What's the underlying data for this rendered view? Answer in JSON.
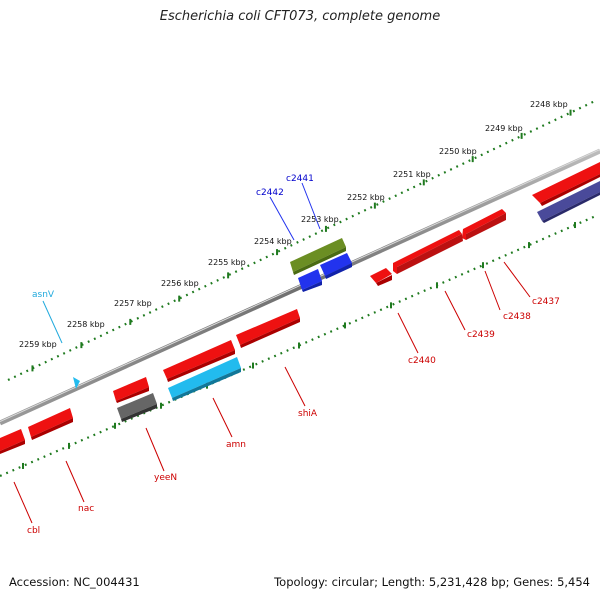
{
  "title": "Escherichia coli CFT073, complete genome",
  "footer": {
    "accession": "Accession: NC_004431",
    "summary": "Topology: circular; Length: 5,231,428 bp; Genes: 5,454"
  },
  "colors": {
    "backbone": "#7a7a7a",
    "tick": "#1f7a1f",
    "red_gene": "#ee1111",
    "red_label": "#cc0000",
    "blue_label": "#0000cc",
    "cyan_label": "#22aadd"
  },
  "ruler_outer": [
    {
      "label": "2248 kbp"
    },
    {
      "label": "2249 kbp"
    },
    {
      "label": "2250 kbp"
    },
    {
      "label": "2251 kbp"
    },
    {
      "label": "2252 kbp"
    },
    {
      "label": "2253 kbp"
    },
    {
      "label": "2254 kbp"
    },
    {
      "label": "2255 kbp"
    },
    {
      "label": "2256 kbp"
    },
    {
      "label": "2257 kbp"
    },
    {
      "label": "2258 kbp"
    },
    {
      "label": "2259 kbp"
    }
  ],
  "genes_forward": [
    {
      "name": "c2441",
      "color": "#2233ee",
      "label_color": "#0000cc"
    },
    {
      "name": "c2442",
      "color": "#2233ee",
      "label_color": "#0000cc"
    },
    {
      "name": "asnV",
      "color": "#22bbee",
      "label_color": "#22aadd",
      "icon": "trna-arrow-icon"
    }
  ],
  "genes_reverse": [
    {
      "name": "c2437",
      "color": "#ee1111",
      "label_color": "#cc0000"
    },
    {
      "name": "c2438",
      "color": "#ee1111",
      "label_color": "#cc0000"
    },
    {
      "name": "c2439",
      "color": "#ee1111",
      "label_color": "#cc0000"
    },
    {
      "name": "c2440",
      "color": "#ee1111",
      "label_color": "#cc0000"
    },
    {
      "name": "shiA",
      "color": "#ee1111",
      "label_color": "#cc0000"
    },
    {
      "name": "amn",
      "color": "#22bbee",
      "label_color": "#cc0000"
    },
    {
      "name": "yeeN",
      "color": "#666666",
      "label_color": "#cc0000"
    },
    {
      "name": "nac",
      "color": "#ee1111",
      "label_color": "#cc0000"
    },
    {
      "name": "cbl",
      "color": "#ee1111",
      "label_color": "#cc0000"
    }
  ]
}
